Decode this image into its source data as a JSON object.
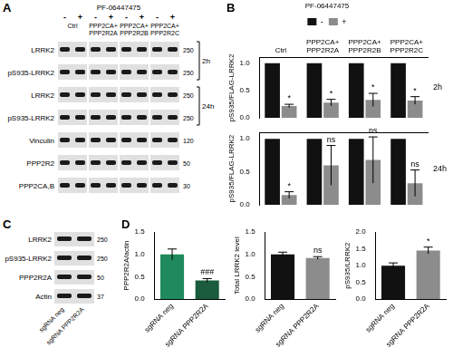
{
  "panels": [
    "A",
    "B",
    "C",
    "D"
  ],
  "blot_A": {
    "treatment": "PF-06447475",
    "lanes": [
      "-",
      "+",
      "-",
      "+",
      "-",
      "+",
      "-",
      "+"
    ],
    "groups": [
      "Ctrl",
      "PPP2CA+ PPP2R2A",
      "PPP2CA+ PPP2R2B",
      "PPP2CA+ PPP2R2C"
    ],
    "timed": [
      {
        "label": "2h",
        "rows": [
          {
            "label": "LRRK2",
            "mw": 250
          },
          {
            "label": "pS935-LRRK2",
            "mw": 250
          }
        ]
      },
      {
        "label": "24h",
        "rows": [
          {
            "label": "LRRK2",
            "mw": 250
          },
          {
            "label": "pS935-LRRK2",
            "mw": 250
          }
        ]
      }
    ],
    "rows": [
      {
        "label": "Vinculin",
        "mw": 120
      },
      {
        "label": "PPP2R2",
        "mw": 50
      },
      {
        "label": "PPP2CA,B",
        "mw": 30
      }
    ]
  },
  "blot_C": {
    "lanes": [
      "sgRNA neg",
      "sgRNA PPP2R2A"
    ],
    "rows": [
      {
        "label": "LRRK2",
        "mw": 250
      },
      {
        "label": "pS935-LRRK2",
        "mw": 250
      },
      {
        "label": "PPP2R2A",
        "mw": 50
      },
      {
        "label": "Actin",
        "mw": 37
      }
    ]
  },
  "chart_data": [
    {
      "panel": "B",
      "type": "bar",
      "title": "2h",
      "y_label": "pS935/FLAG-LRRK2",
      "categories": [
        "Ctrl",
        "PPP2CA+ PPP2R2A",
        "PPP2CA+ PPP2R2B",
        "PPP2CA+ PPP2R2C"
      ],
      "series": [
        {
          "name": "-",
          "color": "#111111",
          "values": [
            1,
            1,
            1,
            1
          ]
        },
        {
          "name": "+",
          "color": "#8c8c8c",
          "values": [
            0.22,
            0.28,
            0.33,
            0.32
          ],
          "errors": [
            0.03,
            0.06,
            0.12,
            0.07
          ],
          "annotations": [
            "*",
            "*",
            "*",
            "*"
          ]
        }
      ],
      "legend": "top",
      "legend_title": "PF-06447475",
      "ylim": [
        0,
        1.1
      ],
      "yticks": [
        {
          "value": 0,
          "label": "0.0"
        },
        0.5,
        {
          "value": 1,
          "label": "1.0"
        }
      ],
      "grid": false
    },
    {
      "panel": "B",
      "type": "bar",
      "title": "24h",
      "y_label": "pS935/FLAG-LRRK2",
      "categories": [
        "Ctrl",
        "PPP2CA+ PPP2R2A",
        "PPP2CA+ PPP2R2B",
        "PPP2CA+ PPP2R2C"
      ],
      "series": [
        {
          "color": "#111111",
          "values": [
            1,
            1,
            1,
            1
          ]
        },
        {
          "color": "#8c8c8c",
          "values": [
            0.15,
            0.6,
            0.68,
            0.33
          ],
          "errors": [
            0.05,
            0.3,
            0.35,
            0.2
          ],
          "annotations": [
            "*",
            "ns",
            "ns",
            "ns"
          ]
        }
      ],
      "tick_labels": "y",
      "ylim": [
        0,
        1.1
      ],
      "yticks": [
        {
          "value": 0,
          "label": "0.0"
        },
        0.5,
        {
          "value": 1,
          "label": "1.0"
        }
      ],
      "grid": false
    },
    {
      "panel": "D",
      "type": "bar",
      "y_label": "PPP2R2A/actin",
      "categories": [
        "sgRNA neg",
        "sgRNA PPP2R2A"
      ],
      "values": [
        1.0,
        0.42
      ],
      "errors": [
        0.12,
        0.04
      ],
      "annotations": [
        null,
        "###"
      ],
      "colors": [
        "#1f8a5b",
        "#1a5c3c"
      ],
      "ylim": [
        0,
        1.5
      ],
      "yticks": [
        {
          "value": 0,
          "label": "0.0"
        },
        0.5,
        {
          "value": 1,
          "label": "1.0"
        },
        1.5
      ],
      "grid": false
    },
    {
      "panel": "D",
      "type": "bar",
      "y_label": "Total LRRK2 level",
      "categories": [
        "sgRNA neg",
        "sgRNA PPP2R2A"
      ],
      "values": [
        1.0,
        0.92
      ],
      "errors": [
        0.05,
        0.03
      ],
      "annotations": [
        null,
        "ns"
      ],
      "colors": [
        "#111111",
        "#8c8c8c"
      ],
      "ylim": [
        0,
        1.5
      ],
      "yticks": [
        {
          "value": 0,
          "label": "0.0"
        },
        0.5,
        {
          "value": 1,
          "label": "1.0"
        },
        1.5
      ],
      "grid": false
    },
    {
      "panel": "D",
      "type": "bar",
      "y_label": "pS935/LRRK2",
      "categories": [
        "sgRNA neg",
        "sgRNA PPP2R2A"
      ],
      "values": [
        1.0,
        1.45
      ],
      "errors": [
        0.08,
        0.1
      ],
      "annotations": [
        null,
        "*"
      ],
      "colors": [
        "#111111",
        "#8c8c8c"
      ],
      "ylim": [
        0,
        2.0
      ],
      "yticks": [
        {
          "value": 0,
          "label": "0.0"
        },
        0.5,
        {
          "value": 1,
          "label": "1.0"
        },
        1.5,
        {
          "value": 2,
          "label": "2.0"
        }
      ],
      "grid": false
    }
  ]
}
